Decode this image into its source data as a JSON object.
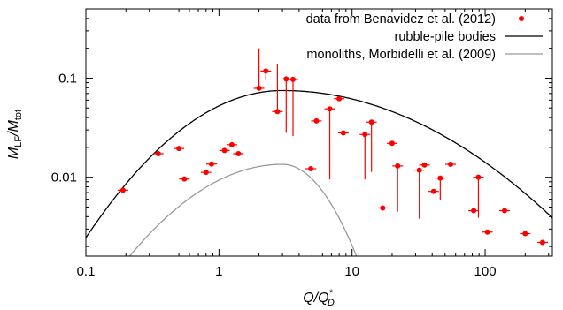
{
  "chart_data": {
    "type": "scatter",
    "x_scale": "log",
    "y_scale": "log",
    "xlim": [
      0.1,
      320
    ],
    "ylim": [
      0.0016,
      0.5
    ],
    "grid": false,
    "legend_position": "top-right",
    "xlabel": {
      "main": "Q/Q",
      "sup": "*",
      "sub": "D"
    },
    "ylabel": {
      "main": "M",
      "sub1": "LF",
      "mid": "/M",
      "sub2": "tot"
    },
    "x_ticks": [
      {
        "value": 0.1,
        "label": "0.1"
      },
      {
        "value": 1,
        "label": "1"
      },
      {
        "value": 10,
        "label": "10"
      },
      {
        "value": 100,
        "label": "100"
      }
    ],
    "y_ticks": [
      {
        "value": 0.01,
        "label": "0.01"
      },
      {
        "value": 0.1,
        "label": "0.1"
      }
    ],
    "series": [
      {
        "name": "data from Benavidez et al. (2012)",
        "kind": "points",
        "color": "#ff0000",
        "points": [
          {
            "x": 0.19,
            "y": 0.0074
          },
          {
            "x": 0.35,
            "y": 0.0173
          },
          {
            "x": 0.5,
            "y": 0.0195
          },
          {
            "x": 0.55,
            "y": 0.0096
          },
          {
            "x": 0.8,
            "y": 0.0112
          },
          {
            "x": 0.88,
            "y": 0.0136
          },
          {
            "x": 1.1,
            "y": 0.0186
          },
          {
            "x": 1.25,
            "y": 0.0213
          },
          {
            "x": 1.4,
            "y": 0.0173
          },
          {
            "x": 2.0,
            "y": 0.079,
            "yerr_up": 0.2
          },
          {
            "x": 2.25,
            "y": 0.118,
            "yerr_down": 0.095
          },
          {
            "x": 2.75,
            "y": 0.046,
            "yerr_up": 0.14
          },
          {
            "x": 3.2,
            "y": 0.098,
            "yerr_down": 0.028
          },
          {
            "x": 3.6,
            "y": 0.097,
            "yerr_down": 0.026
          },
          {
            "x": 4.9,
            "y": 0.0122
          },
          {
            "x": 5.4,
            "y": 0.037
          },
          {
            "x": 6.8,
            "y": 0.049,
            "yerr_down": 0.0095
          },
          {
            "x": 8.0,
            "y": 0.062
          },
          {
            "x": 8.6,
            "y": 0.028
          },
          {
            "x": 12.5,
            "y": 0.027,
            "yerr_down": 0.0095
          },
          {
            "x": 14.0,
            "y": 0.036,
            "yerr_down": 0.0113
          },
          {
            "x": 17.0,
            "y": 0.0049
          },
          {
            "x": 20.0,
            "y": 0.022
          },
          {
            "x": 22.0,
            "y": 0.013,
            "yerr_down": 0.0045
          },
          {
            "x": 32.0,
            "y": 0.0118,
            "yerr_down": 0.0038
          },
          {
            "x": 35.0,
            "y": 0.0133
          },
          {
            "x": 41.0,
            "y": 0.0072
          },
          {
            "x": 46.0,
            "y": 0.0098,
            "yerr_down": 0.0059
          },
          {
            "x": 55.0,
            "y": 0.0135
          },
          {
            "x": 82.0,
            "y": 0.0046
          },
          {
            "x": 89.0,
            "y": 0.01,
            "yerr_down": 0.0039
          },
          {
            "x": 104.0,
            "y": 0.0028
          },
          {
            "x": 140.0,
            "y": 0.0046
          },
          {
            "x": 200.0,
            "y": 0.0027
          },
          {
            "x": 270.0,
            "y": 0.0022
          }
        ]
      },
      {
        "name": "rubble-pile bodies",
        "kind": "line",
        "color": "#000000",
        "model": {
          "peak_x": 3.0,
          "peak_y": 0.075,
          "sigma_ln_left": 1.3,
          "sigma_ln_right": 1.92
        }
      },
      {
        "name": "monoliths, Morbidelli et al. (2009)",
        "kind": "line",
        "color": "#999999",
        "model": {
          "peak_x": 3.0,
          "peak_y": 0.0135,
          "sigma_ln_left": 1.28,
          "sigma_ln_right": 0.62
        }
      }
    ]
  }
}
